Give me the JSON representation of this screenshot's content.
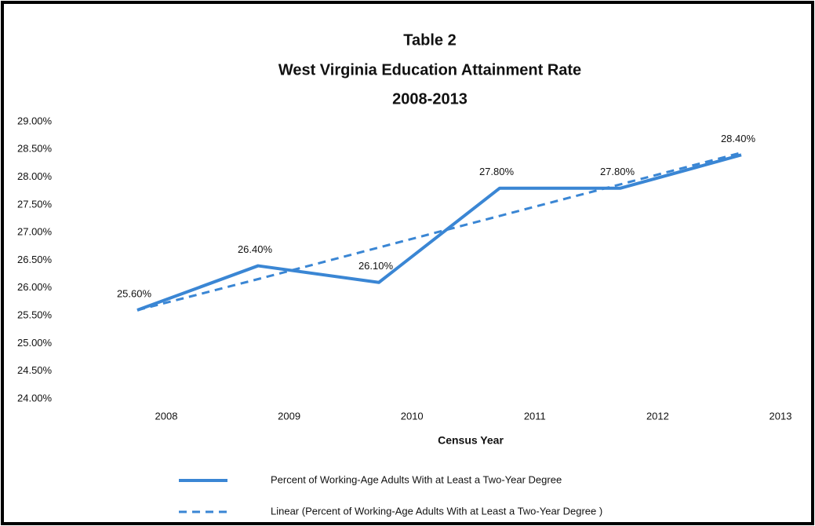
{
  "chart_data": {
    "type": "line",
    "title": [
      "Table 2",
      "West Virginia Education Attainment Rate",
      "2008-2013"
    ],
    "x_label": "Census Year",
    "categories": [
      "2008",
      "2009",
      "2010",
      "2011",
      "2012",
      "2013"
    ],
    "series": [
      {
        "name": "Percent of Working-Age Adults With at Least a Two-Year Degree",
        "color": "#3a86d4",
        "style": "solid",
        "values": [
          25.6,
          26.4,
          26.1,
          27.8,
          27.8,
          28.4
        ],
        "value_labels": [
          "25.60%",
          "26.40%",
          "26.10%",
          "27.80%",
          "27.80%",
          "28.40%"
        ]
      },
      {
        "name": "Linear (Percent of Working-Age Adults With at Least a Two-Year Degree )",
        "color": "#3a86d4",
        "style": "dashed",
        "values": [
          25.6,
          26.16,
          26.73,
          27.3,
          27.87,
          28.44
        ]
      }
    ],
    "ylim": [
      24,
      29
    ],
    "yticks": [
      {
        "value": 24,
        "label": "24.00%"
      },
      {
        "value": 24.5,
        "label": "24.50%"
      },
      {
        "value": 25,
        "label": "25.00%"
      },
      {
        "value": 25.5,
        "label": "25.50%"
      },
      {
        "value": 26,
        "label": "26.00%"
      },
      {
        "value": 26.5,
        "label": "26.50%"
      },
      {
        "value": 27,
        "label": "27.00%"
      },
      {
        "value": 27.5,
        "label": "27.50%"
      },
      {
        "value": 28,
        "label": "28.00%"
      },
      {
        "value": 28.5,
        "label": "28.50%"
      },
      {
        "value": 29,
        "label": "29.00%"
      }
    ],
    "grid": false,
    "legend": "bottom"
  }
}
